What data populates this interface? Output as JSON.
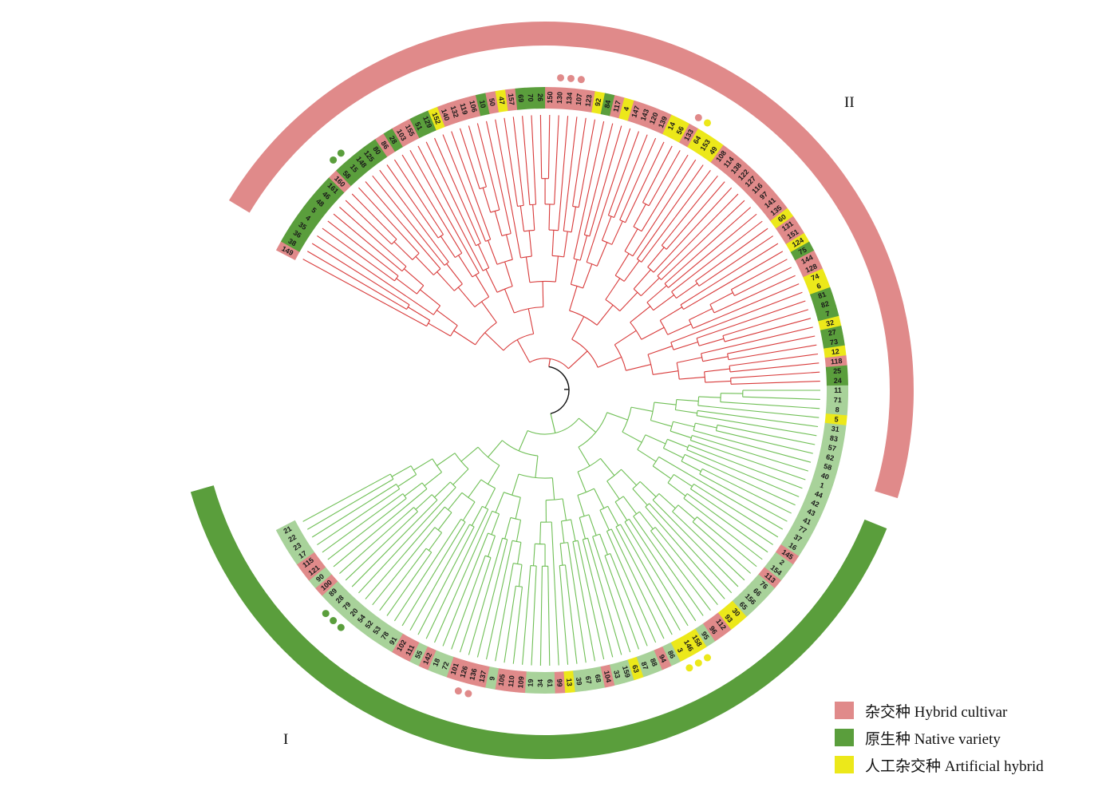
{
  "colors": {
    "hybrid": "#e08a8a",
    "native": "#5a9e3c",
    "artificial": "#ece81a",
    "native_light": "#a8d29a",
    "branch_clade_1": "#6fbf55",
    "branch_clade_2": "#d83a3a",
    "root": "#111111"
  },
  "clades": [
    {
      "label": "I",
      "color": "#5a9e3c"
    },
    {
      "label": "II",
      "color": "#e08a8a"
    }
  ],
  "legend": [
    {
      "label": "杂交种 Hybrid cultivar",
      "color": "#e08a8a"
    },
    {
      "label": "原生种 Native variety",
      "color": "#5a9e3c"
    },
    {
      "label": "人工杂交种 Artificial hybrid",
      "color": "#ece81a"
    }
  ],
  "leaves": [
    {
      "id": "149",
      "type": "hybrid"
    },
    {
      "id": "38",
      "type": "native"
    },
    {
      "id": "36",
      "type": "native"
    },
    {
      "id": "35",
      "type": "native"
    },
    {
      "id": "4",
      "type": "native"
    },
    {
      "id": "5",
      "type": "native"
    },
    {
      "id": "48",
      "type": "native"
    },
    {
      "id": "46",
      "type": "native"
    },
    {
      "id": "161",
      "type": "native"
    },
    {
      "id": "160",
      "type": "hybrid"
    },
    {
      "id": "58",
      "type": "native",
      "marked": true
    },
    {
      "id": "15",
      "type": "native",
      "marked": true
    },
    {
      "id": "148",
      "type": "native"
    },
    {
      "id": "125",
      "type": "native"
    },
    {
      "id": "80",
      "type": "native"
    },
    {
      "id": "86",
      "type": "hybrid"
    },
    {
      "id": "28",
      "type": "native"
    },
    {
      "id": "103",
      "type": "hybrid"
    },
    {
      "id": "155",
      "type": "hybrid"
    },
    {
      "id": "51",
      "type": "native"
    },
    {
      "id": "129",
      "type": "native"
    },
    {
      "id": "152",
      "type": "artificial"
    },
    {
      "id": "140",
      "type": "hybrid"
    },
    {
      "id": "132",
      "type": "hybrid"
    },
    {
      "id": "119",
      "type": "hybrid"
    },
    {
      "id": "106",
      "type": "hybrid"
    },
    {
      "id": "10",
      "type": "native"
    },
    {
      "id": "50",
      "type": "hybrid"
    },
    {
      "id": "47",
      "type": "artificial"
    },
    {
      "id": "157",
      "type": "hybrid"
    },
    {
      "id": "69",
      "type": "native"
    },
    {
      "id": "70",
      "type": "native"
    },
    {
      "id": "26",
      "type": "native"
    },
    {
      "id": "150",
      "type": "hybrid"
    },
    {
      "id": "130",
      "type": "hybrid",
      "marked": true
    },
    {
      "id": "134",
      "type": "hybrid",
      "marked": true
    },
    {
      "id": "107",
      "type": "hybrid",
      "marked": true
    },
    {
      "id": "123",
      "type": "hybrid"
    },
    {
      "id": "92",
      "type": "artificial"
    },
    {
      "id": "84",
      "type": "native"
    },
    {
      "id": "117",
      "type": "hybrid"
    },
    {
      "id": "4",
      "type": "artificial"
    },
    {
      "id": "147",
      "type": "hybrid"
    },
    {
      "id": "143",
      "type": "hybrid"
    },
    {
      "id": "120",
      "type": "hybrid"
    },
    {
      "id": "139",
      "type": "hybrid"
    },
    {
      "id": "14",
      "type": "artificial"
    },
    {
      "id": "56",
      "type": "artificial"
    },
    {
      "id": "133",
      "type": "hybrid",
      "marked": true
    },
    {
      "id": "64",
      "type": "artificial",
      "marked": true
    },
    {
      "id": "153",
      "type": "artificial"
    },
    {
      "id": "49",
      "type": "artificial"
    },
    {
      "id": "108",
      "type": "hybrid"
    },
    {
      "id": "114",
      "type": "hybrid"
    },
    {
      "id": "138",
      "type": "hybrid"
    },
    {
      "id": "122",
      "type": "hybrid"
    },
    {
      "id": "127",
      "type": "hybrid"
    },
    {
      "id": "116",
      "type": "hybrid"
    },
    {
      "id": "97",
      "type": "hybrid"
    },
    {
      "id": "141",
      "type": "hybrid"
    },
    {
      "id": "135",
      "type": "hybrid"
    },
    {
      "id": "60",
      "type": "artificial"
    },
    {
      "id": "131",
      "type": "hybrid"
    },
    {
      "id": "151",
      "type": "hybrid"
    },
    {
      "id": "124",
      "type": "artificial"
    },
    {
      "id": "75",
      "type": "native"
    },
    {
      "id": "144",
      "type": "hybrid"
    },
    {
      "id": "128",
      "type": "hybrid"
    },
    {
      "id": "74",
      "type": "artificial"
    },
    {
      "id": "6",
      "type": "artificial"
    },
    {
      "id": "81",
      "type": "native"
    },
    {
      "id": "82",
      "type": "native"
    },
    {
      "id": "7",
      "type": "native"
    },
    {
      "id": "32",
      "type": "artificial"
    },
    {
      "id": "27",
      "type": "native"
    },
    {
      "id": "73",
      "type": "native"
    },
    {
      "id": "12",
      "type": "artificial"
    },
    {
      "id": "118",
      "type": "hybrid"
    },
    {
      "id": "25",
      "type": "native"
    },
    {
      "id": "24",
      "type": "native"
    },
    {
      "id": "11",
      "type": "native_light"
    },
    {
      "id": "71",
      "type": "native_light"
    },
    {
      "id": "8",
      "type": "native_light"
    },
    {
      "id": "5",
      "type": "artificial"
    },
    {
      "id": "31",
      "type": "native_light"
    },
    {
      "id": "83",
      "type": "native_light"
    },
    {
      "id": "57",
      "type": "native_light"
    },
    {
      "id": "62",
      "type": "native_light"
    },
    {
      "id": "58",
      "type": "native_light"
    },
    {
      "id": "40",
      "type": "native_light"
    },
    {
      "id": "1",
      "type": "native_light"
    },
    {
      "id": "44",
      "type": "native_light"
    },
    {
      "id": "42",
      "type": "native_light"
    },
    {
      "id": "43",
      "type": "native_light"
    },
    {
      "id": "41",
      "type": "native_light"
    },
    {
      "id": "77",
      "type": "native_light"
    },
    {
      "id": "37",
      "type": "native_light"
    },
    {
      "id": "16",
      "type": "native_light"
    },
    {
      "id": "145",
      "type": "hybrid"
    },
    {
      "id": "2",
      "type": "native_light"
    },
    {
      "id": "154",
      "type": "native_light"
    },
    {
      "id": "113",
      "type": "hybrid"
    },
    {
      "id": "76",
      "type": "native_light"
    },
    {
      "id": "66",
      "type": "native_light"
    },
    {
      "id": "156",
      "type": "native_light"
    },
    {
      "id": "65",
      "type": "native_light"
    },
    {
      "id": "30",
      "type": "artificial"
    },
    {
      "id": "93",
      "type": "artificial"
    },
    {
      "id": "112",
      "type": "hybrid"
    },
    {
      "id": "96",
      "type": "hybrid"
    },
    {
      "id": "95",
      "type": "native_light"
    },
    {
      "id": "158",
      "type": "artificial",
      "marked": true
    },
    {
      "id": "146",
      "type": "artificial",
      "marked": true
    },
    {
      "id": "3",
      "type": "artificial",
      "marked": true
    },
    {
      "id": "86",
      "type": "native_light"
    },
    {
      "id": "94",
      "type": "hybrid"
    },
    {
      "id": "88",
      "type": "native_light"
    },
    {
      "id": "87",
      "type": "native_light"
    },
    {
      "id": "63",
      "type": "artificial"
    },
    {
      "id": "159",
      "type": "native_light"
    },
    {
      "id": "33",
      "type": "native_light"
    },
    {
      "id": "104",
      "type": "hybrid"
    },
    {
      "id": "68",
      "type": "native_light"
    },
    {
      "id": "67",
      "type": "native_light"
    },
    {
      "id": "39",
      "type": "native_light"
    },
    {
      "id": "13",
      "type": "artificial"
    },
    {
      "id": "99",
      "type": "hybrid"
    },
    {
      "id": "61",
      "type": "native_light"
    },
    {
      "id": "34",
      "type": "native_light"
    },
    {
      "id": "19",
      "type": "native_light"
    },
    {
      "id": "109",
      "type": "hybrid"
    },
    {
      "id": "110",
      "type": "hybrid"
    },
    {
      "id": "105",
      "type": "hybrid"
    },
    {
      "id": "9",
      "type": "native_light"
    },
    {
      "id": "137",
      "type": "hybrid"
    },
    {
      "id": "136",
      "type": "hybrid",
      "marked": true
    },
    {
      "id": "126",
      "type": "hybrid",
      "marked": true
    },
    {
      "id": "101",
      "type": "hybrid"
    },
    {
      "id": "72",
      "type": "native_light"
    },
    {
      "id": "18",
      "type": "native_light"
    },
    {
      "id": "142",
      "type": "hybrid"
    },
    {
      "id": "55",
      "type": "native_light"
    },
    {
      "id": "111",
      "type": "hybrid"
    },
    {
      "id": "102",
      "type": "hybrid"
    },
    {
      "id": "91",
      "type": "native_light"
    },
    {
      "id": "78",
      "type": "native_light"
    },
    {
      "id": "53",
      "type": "native_light"
    },
    {
      "id": "52",
      "type": "native_light"
    },
    {
      "id": "54",
      "type": "native_light"
    },
    {
      "id": "20",
      "type": "native_light",
      "marked": true
    },
    {
      "id": "79",
      "type": "native_light",
      "marked": true
    },
    {
      "id": "28",
      "type": "native_light",
      "marked": true
    },
    {
      "id": "89",
      "type": "native_light"
    },
    {
      "id": "100",
      "type": "hybrid"
    },
    {
      "id": "90",
      "type": "native_light"
    },
    {
      "id": "121",
      "type": "hybrid"
    },
    {
      "id": "115",
      "type": "hybrid"
    },
    {
      "id": "17",
      "type": "native_light"
    },
    {
      "id": "23",
      "type": "native_light"
    },
    {
      "id": "22",
      "type": "native_light"
    },
    {
      "id": "21",
      "type": "native_light"
    }
  ]
}
